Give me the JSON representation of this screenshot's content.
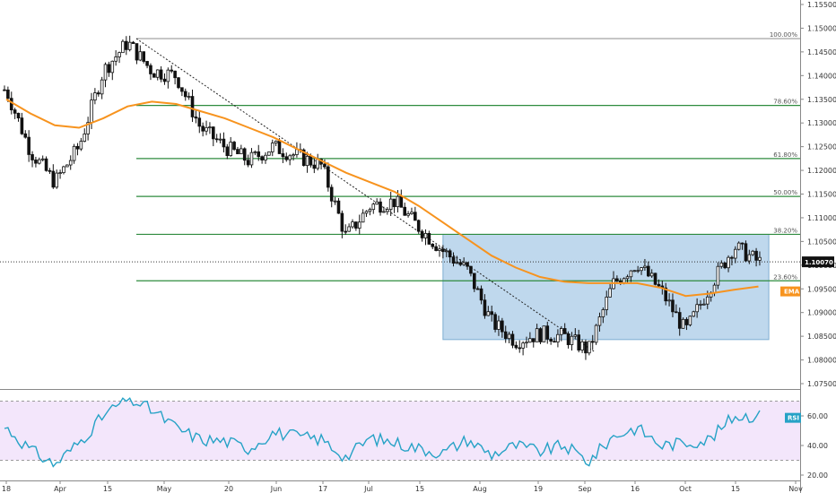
{
  "chart_data": [
    {
      "type": "candlestick",
      "series": [
        {
          "name": "EMA",
          "x": [
            "2019-03-18",
            "2019-03-25",
            "2019-04-01",
            "2019-04-08",
            "2019-04-15",
            "2019-04-22",
            "2019-04-29",
            "2019-05-06",
            "2019-05-13",
            "2019-05-20",
            "2019-05-27",
            "2019-06-03",
            "2019-06-10",
            "2019-06-17",
            "2019-06-24",
            "2019-07-01",
            "2019-07-08",
            "2019-07-15",
            "2019-07-22",
            "2019-07-29",
            "2019-08-05",
            "2019-08-12",
            "2019-08-19",
            "2019-08-26",
            "2019-09-02",
            "2019-09-09",
            "2019-09-16",
            "2019-09-23",
            "2019-09-30",
            "2019-10-07",
            "2019-10-14",
            "2019-10-21"
          ],
          "values": [
            1.135,
            1.132,
            1.1295,
            1.129,
            1.131,
            1.1335,
            1.1345,
            1.134,
            1.1325,
            1.131,
            1.129,
            1.127,
            1.1245,
            1.122,
            1.1195,
            1.1175,
            1.1155,
            1.1125,
            1.109,
            1.1055,
            1.102,
            1.0995,
            1.0975,
            1.0965,
            1.0962,
            1.0962,
            1.0962,
            1.0952,
            1.0935,
            1.094,
            1.0948,
            1.0955
          ]
        },
        {
          "name": "Price",
          "x": [
            "2019-03-18",
            "2019-03-25",
            "2019-04-01",
            "2019-04-08",
            "2019-04-15",
            "2019-04-22",
            "2019-04-29",
            "2019-05-06",
            "2019-05-13",
            "2019-05-20",
            "2019-05-27",
            "2019-06-03",
            "2019-06-10",
            "2019-06-17",
            "2019-06-24",
            "2019-07-01",
            "2019-07-08",
            "2019-07-15",
            "2019-07-22",
            "2019-07-29",
            "2019-08-05",
            "2019-08-12",
            "2019-08-19",
            "2019-08-26",
            "2019-09-02",
            "2019-09-09",
            "2019-09-16",
            "2019-09-23",
            "2019-09-30",
            "2019-10-07",
            "2019-10-14",
            "2019-10-21"
          ],
          "values": [
            1.137,
            1.124,
            1.1175,
            1.125,
            1.141,
            1.147,
            1.141,
            1.14,
            1.129,
            1.125,
            1.122,
            1.125,
            1.123,
            1.121,
            1.106,
            1.1125,
            1.1135,
            1.108,
            1.103,
            1.099,
            1.088,
            1.084,
            1.0855,
            1.085,
            1.082,
            1.096,
            1.1005,
            1.0945,
            1.086,
            1.0955,
            1.104,
            1.1007
          ]
        },
        {
          "name": "RSI",
          "x": [
            "2019-03-18",
            "2019-03-25",
            "2019-04-01",
            "2019-04-08",
            "2019-04-15",
            "2019-04-22",
            "2019-04-29",
            "2019-05-06",
            "2019-05-13",
            "2019-05-20",
            "2019-05-27",
            "2019-06-03",
            "2019-06-10",
            "2019-06-17",
            "2019-06-24",
            "2019-07-01",
            "2019-07-08",
            "2019-07-15",
            "2019-07-22",
            "2019-07-29",
            "2019-08-05",
            "2019-08-12",
            "2019-08-19",
            "2019-08-26",
            "2019-09-02",
            "2019-09-09",
            "2019-09-16",
            "2019-09-23",
            "2019-09-30",
            "2019-10-07",
            "2019-10-14",
            "2019-10-21"
          ],
          "values": [
            52,
            37,
            27,
            42,
            60,
            72,
            64,
            52,
            44,
            43,
            38,
            49,
            46,
            44,
            32,
            45,
            42,
            38,
            35,
            44,
            34,
            40,
            36,
            40,
            29,
            46,
            52,
            40,
            42,
            44,
            60,
            60
          ]
        }
      ],
      "ylim": [
        1.0737,
        1.1572
      ],
      "y_ticks": [
        "1.15500",
        "1.15000",
        "1.14500",
        "1.14000",
        "1.13500",
        "1.13000",
        "1.12500",
        "1.12000",
        "1.11500",
        "1.11000",
        "1.10500",
        "1.10000",
        "1.09500",
        "1.09000",
        "1.08500",
        "1.08000",
        "1.07500"
      ],
      "x_ticks": [
        "18",
        "Apr",
        "15",
        "May",
        "20",
        "Jun",
        "17",
        "Jul",
        "15",
        "Aug",
        "19",
        "Sep",
        "16",
        "Oct",
        "15",
        "Nov"
      ],
      "fib_levels": [
        {
          "label": "100.00%",
          "value": 1.1478
        },
        {
          "label": "78.60%",
          "value": 1.1337
        },
        {
          "label": "61.80%",
          "value": 1.1225
        },
        {
          "label": "50.00%",
          "value": 1.1145
        },
        {
          "label": "38.20%",
          "value": 1.1065
        },
        {
          "label": "23.60%",
          "value": 1.0967
        }
      ],
      "price_tag": "1.10070",
      "ema_tag": "EMA",
      "range_box": {
        "x_start": "2019-07-22",
        "x_end": "2019-10-24",
        "y_low": 1.0843,
        "y_high": 1.1065
      },
      "colors": {
        "ema": "#f7931e",
        "fib": "#2e8b3e",
        "box": "#a9cbe7",
        "rsi": "#26a2c6",
        "rsi_band": "#f3e6fb"
      }
    },
    {
      "type": "line",
      "name": "RSI",
      "ylim": [
        18,
        75
      ],
      "y_ticks": [
        "60.00",
        "40.00",
        "20.00"
      ],
      "tag": "RSI"
    }
  ]
}
